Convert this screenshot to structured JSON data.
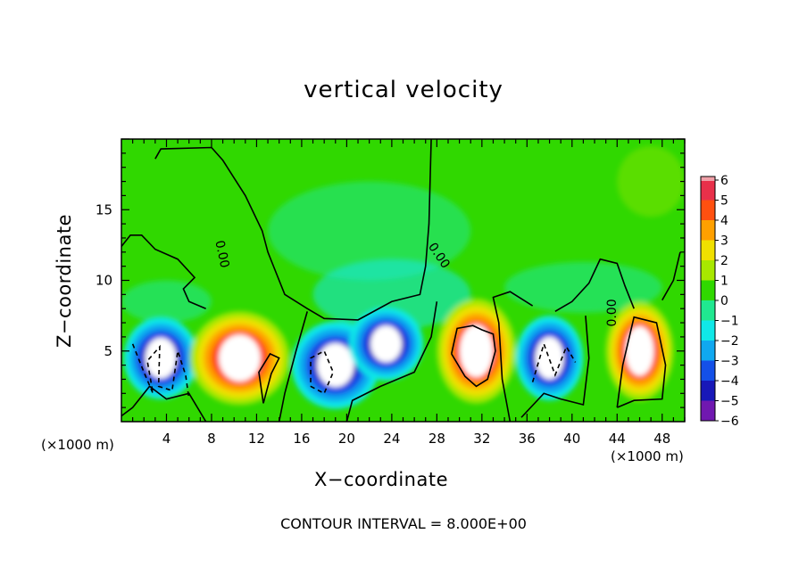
{
  "chart_data": {
    "type": "heatmap",
    "title": "vertical velocity",
    "xlabel": "X−coordinate",
    "ylabel": "Z−coordinate",
    "x_unit_label_left": "(×1000 m)",
    "x_unit_label_right": "(×1000 m)",
    "footnote": "CONTOUR INTERVAL = 8.000E+00",
    "xlim": [
      0,
      50
    ],
    "ylim": [
      0,
      20
    ],
    "x_ticks": [
      4,
      8,
      12,
      16,
      20,
      24,
      28,
      32,
      36,
      40,
      44,
      48
    ],
    "y_ticks": [
      5,
      10,
      15
    ],
    "colorbar": {
      "ticks": [
        "6",
        "5",
        "4",
        "3",
        "2",
        "1",
        "0",
        "−1",
        "−2",
        "−3",
        "−4",
        "−5",
        "−6"
      ],
      "range": [
        -6,
        6
      ],
      "colors": {
        "6": "#f0a0a8",
        "5": "#e8304a",
        "4": "#ff5010",
        "3": "#ffa000",
        "2": "#f0e000",
        "1": "#a8e800",
        "0": "#30d800",
        "-1": "#20e890",
        "-2": "#10e8e8",
        "-3": "#10a8f0",
        "-4": "#1450e8",
        "-5": "#1818b8",
        "-6": "#7018b0"
      }
    },
    "contour_labels": [
      "0.00",
      "0.00",
      "0.00"
    ],
    "cells": [
      {
        "x": 3.5,
        "z": 4.5,
        "w": -9
      },
      {
        "x": 10.5,
        "z": 4.5,
        "w": 6.5
      },
      {
        "x": 19,
        "z": 4,
        "w": -8
      },
      {
        "x": 23.5,
        "z": 5.5,
        "w": -7
      },
      {
        "x": 31.5,
        "z": 5,
        "w": 10
      },
      {
        "x": 38,
        "z": 4.5,
        "w": -8
      },
      {
        "x": 46,
        "z": 5,
        "w": 10
      }
    ]
  }
}
